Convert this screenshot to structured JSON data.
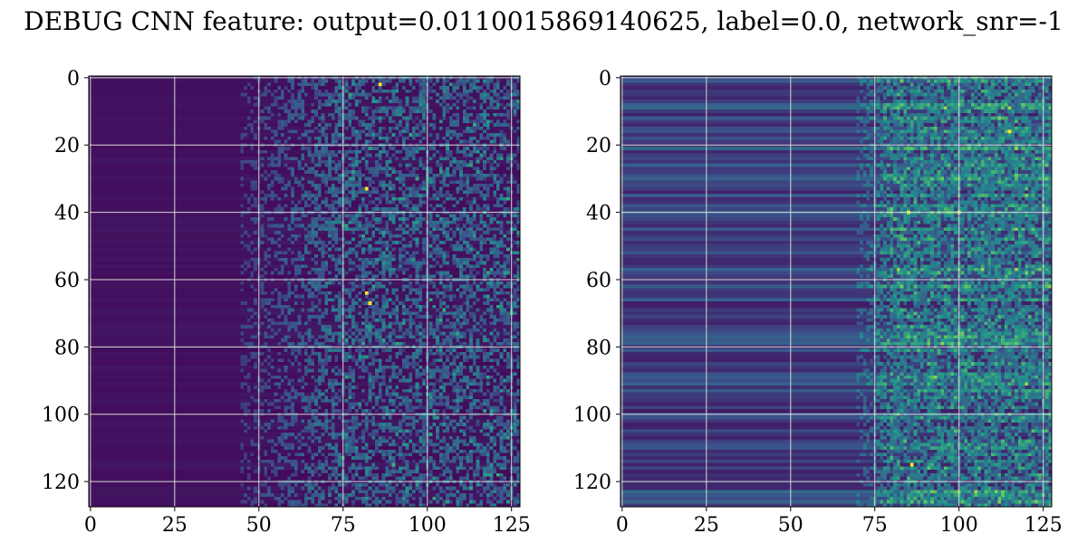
{
  "title": "DEBUG CNN feature: output=0.0110015869140625, label=0.0, network_snr=-1",
  "colormap": "viridis",
  "chart_data": [
    {
      "type": "heatmap",
      "title": "",
      "xlabel": "",
      "ylabel": "",
      "shape": [
        128,
        128
      ],
      "xlim": [
        0,
        127
      ],
      "ylim": [
        127,
        0
      ],
      "xticks": [
        0,
        25,
        50,
        75,
        100,
        125
      ],
      "yticks": [
        0,
        20,
        40,
        60,
        80,
        100,
        120
      ],
      "grid": true,
      "pattern": {
        "low_value_columns": [
          0,
          45
        ],
        "transition_columns": [
          45,
          75
        ],
        "high_activity_columns": [
          75,
          127
        ],
        "row_banding": "weak",
        "background_level": 0.05
      },
      "bright_spots": [
        {
          "x": 86,
          "y": 2
        },
        {
          "x": 82,
          "y": 33
        },
        {
          "x": 82,
          "y": 64
        },
        {
          "x": 83,
          "y": 67
        }
      ]
    },
    {
      "type": "heatmap",
      "title": "",
      "xlabel": "",
      "ylabel": "",
      "shape": [
        128,
        128
      ],
      "xlim": [
        0,
        127
      ],
      "ylim": [
        127,
        0
      ],
      "xticks": [
        0,
        25,
        50,
        75,
        100,
        125
      ],
      "yticks": [
        0,
        20,
        40,
        60,
        80,
        100,
        120
      ],
      "grid": true,
      "pattern": {
        "low_value_columns": [
          0,
          70
        ],
        "transition_columns": [
          70,
          80
        ],
        "high_activity_columns": [
          80,
          127
        ],
        "row_banding": "strong",
        "background_level": 0.2
      },
      "bright_spots": [
        {
          "x": 85,
          "y": 40
        },
        {
          "x": 115,
          "y": 16
        },
        {
          "x": 86,
          "y": 115
        },
        {
          "x": 100,
          "y": 40
        }
      ]
    }
  ]
}
